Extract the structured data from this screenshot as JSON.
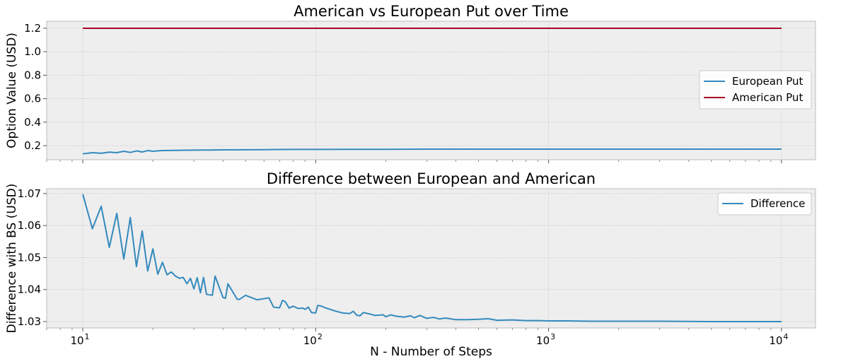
{
  "chart_data": [
    {
      "type": "line",
      "title": "American vs European Put over Time",
      "xlabel": "",
      "ylabel": "Option Value (USD)",
      "xscale": "log",
      "xlim": [
        7,
        14000
      ],
      "ylim": [
        0.08,
        1.26
      ],
      "yticks": [
        0.2,
        0.4,
        0.6,
        0.8,
        1.0,
        1.2
      ],
      "ytick_labels": [
        "0.2",
        "0.4",
        "0.6",
        "0.8",
        "1.0",
        "1.2"
      ],
      "grid": true,
      "legend_position": "center-right",
      "series": [
        {
          "name": "European Put",
          "color": "#348ABD",
          "x": [
            10,
            11,
            12,
            13,
            14,
            15,
            16,
            17,
            18,
            19,
            20,
            22,
            25,
            30,
            35,
            40,
            50,
            60,
            70,
            80,
            100,
            150,
            200,
            300,
            500,
            1000,
            2000,
            5000,
            10000
          ],
          "y": [
            0.13,
            0.14,
            0.135,
            0.145,
            0.14,
            0.152,
            0.142,
            0.155,
            0.146,
            0.158,
            0.152,
            0.158,
            0.16,
            0.162,
            0.163,
            0.164,
            0.165,
            0.166,
            0.167,
            0.168,
            0.168,
            0.169,
            0.169,
            0.17,
            0.17,
            0.17,
            0.17,
            0.17,
            0.17
          ]
        },
        {
          "name": "American Put",
          "color": "#A60628",
          "x": [
            10,
            10000
          ],
          "y": [
            1.2,
            1.2
          ]
        }
      ]
    },
    {
      "type": "line",
      "title": "Difference between European and American",
      "xlabel": "N - Number of Steps",
      "ylabel": "Difference with BS (USD)",
      "xscale": "log",
      "xlim": [
        7,
        14000
      ],
      "xticks": [
        10,
        100,
        1000,
        10000
      ],
      "xtick_labels": [
        {
          "base": "10",
          "exp": "1"
        },
        {
          "base": "10",
          "exp": "2"
        },
        {
          "base": "10",
          "exp": "3"
        },
        {
          "base": "10",
          "exp": "4"
        }
      ],
      "ylim": [
        1.028,
        1.0715
      ],
      "yticks": [
        1.03,
        1.04,
        1.05,
        1.06,
        1.07
      ],
      "ytick_labels": [
        "1.03",
        "1.04",
        "1.05",
        "1.06",
        "1.07"
      ],
      "grid": true,
      "legend_position": "top-right",
      "series": [
        {
          "name": "Difference",
          "color": "#348ABD",
          "x": [
            10,
            11,
            12,
            13,
            14,
            15,
            16,
            17,
            18,
            19,
            20,
            21,
            22,
            23,
            24,
            25,
            26,
            27,
            28,
            29,
            30,
            31,
            32,
            33,
            34,
            36,
            37,
            40,
            41,
            42,
            46,
            47,
            50,
            56,
            63,
            66,
            70,
            72,
            74,
            77,
            80,
            84,
            88,
            90,
            93,
            96,
            100,
            102,
            105,
            110,
            120,
            130,
            140,
            145,
            150,
            155,
            160,
            170,
            180,
            195,
            200,
            210,
            220,
            240,
            255,
            265,
            280,
            300,
            320,
            340,
            360,
            400,
            450,
            500,
            550,
            600,
            700,
            800,
            900,
            1000,
            1200,
            1500,
            2000,
            3000,
            5000,
            10000
          ],
          "y": [
            1.0698,
            1.059,
            1.066,
            1.0532,
            1.0638,
            1.0495,
            1.0625,
            1.0472,
            1.0583,
            1.0458,
            1.0527,
            1.0448,
            1.0485,
            1.0446,
            1.0455,
            1.0442,
            1.0435,
            1.0438,
            1.0418,
            1.0435,
            1.0402,
            1.0437,
            1.039,
            1.0438,
            1.0385,
            1.0382,
            1.0442,
            1.0375,
            1.0373,
            1.0418,
            1.037,
            1.0369,
            1.0382,
            1.0368,
            1.0374,
            1.0345,
            1.0343,
            1.0366,
            1.0362,
            1.0342,
            1.0348,
            1.0341,
            1.0342,
            1.0338,
            1.0345,
            1.0328,
            1.0327,
            1.035,
            1.0349,
            1.0343,
            1.0334,
            1.0327,
            1.0325,
            1.0332,
            1.032,
            1.0318,
            1.0328,
            1.0324,
            1.0319,
            1.0321,
            1.0315,
            1.0321,
            1.0317,
            1.0314,
            1.0318,
            1.0312,
            1.0319,
            1.031,
            1.0313,
            1.0308,
            1.0311,
            1.0306,
            1.0306,
            1.0307,
            1.0309,
            1.0304,
            1.0305,
            1.0303,
            1.0303,
            1.0302,
            1.0302,
            1.0301,
            1.0301,
            1.0301,
            1.03,
            1.03
          ]
        }
      ]
    }
  ]
}
